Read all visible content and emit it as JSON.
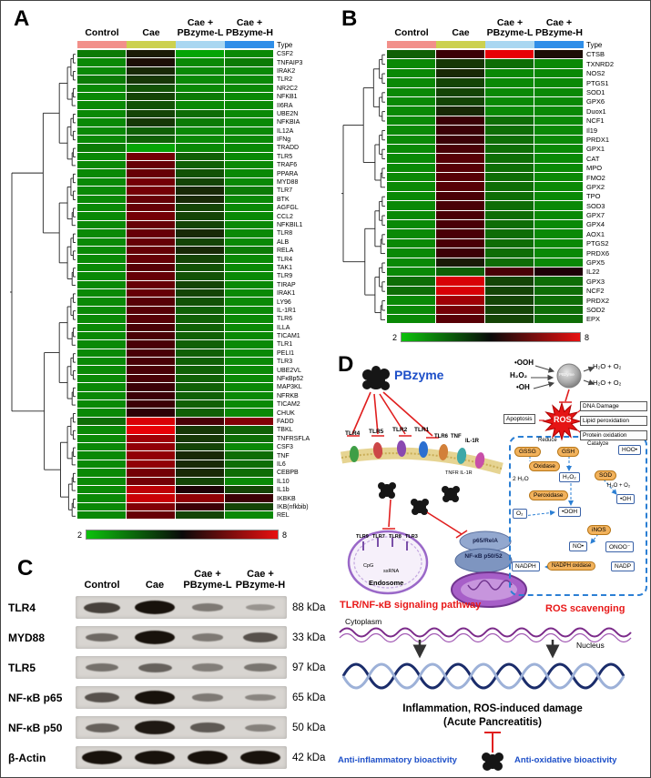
{
  "panelA": {
    "label": "A",
    "type_label": "Type",
    "columns": [
      "Control",
      "Cae",
      "Cae +|PBzyme-L",
      "Cae +|PBzyme-H"
    ],
    "type_colors": [
      "#f2908a",
      "#ccd14f",
      "#a9d7f1",
      "#2f8ee8"
    ],
    "scale": {
      "min": "2",
      "max": "8"
    },
    "genes": [
      "CSF2",
      "TNFAIP3",
      "IRAK2",
      "TLR2",
      "NR2C2",
      "NFKB1",
      "II6RA",
      "UBE2N",
      "NFKBIA",
      "IL12A",
      "IFNg",
      "TRADD",
      "TLR5",
      "TRAF6",
      "PPARA",
      "MYD88",
      "TLR7",
      "BTK",
      "AGFGL",
      "CCL2",
      "NFKBIL1",
      "TLR8",
      "ALB",
      "RELA",
      "TLR4",
      "TAK1",
      "TLR9",
      "TIRAP",
      "IRAK1",
      "LY96",
      "IL-1R1",
      "TLR6",
      "ILLA",
      "TICAM1",
      "TLR1",
      "PELI1",
      "TLR3",
      "UBE2VL",
      "NFκBp52",
      "MAP3KL",
      "NFRKB",
      "TICAM2",
      "CHUK",
      "FADD",
      "TBKL",
      "TNFRSFLA",
      "CSF3",
      "TNF",
      "IL6",
      "CEBPB",
      "IL10",
      "IL1b",
      "IKBKB",
      "IKB(nfkbib)",
      "REL"
    ],
    "values": [
      [
        3.2,
        4.6,
        2.6,
        3.0
      ],
      [
        3.0,
        4.8,
        3.0,
        3.2
      ],
      [
        3.0,
        4.4,
        3.0,
        3.0
      ],
      [
        3.2,
        4.2,
        3.0,
        3.0
      ],
      [
        3.0,
        3.8,
        3.0,
        3.0
      ],
      [
        3.0,
        4.0,
        3.2,
        3.0
      ],
      [
        3.0,
        3.8,
        3.0,
        3.0
      ],
      [
        3.0,
        4.0,
        3.4,
        3.0
      ],
      [
        3.0,
        4.2,
        3.2,
        3.0
      ],
      [
        3.0,
        3.6,
        3.0,
        3.0
      ],
      [
        3.0,
        3.6,
        3.0,
        3.0
      ],
      [
        3.2,
        2.6,
        3.0,
        3.0
      ],
      [
        3.0,
        6.2,
        3.6,
        3.0
      ],
      [
        3.0,
        6.0,
        3.6,
        3.0
      ],
      [
        3.0,
        6.0,
        3.8,
        3.0
      ],
      [
        3.0,
        6.2,
        4.0,
        3.0
      ],
      [
        3.0,
        6.2,
        4.4,
        3.2
      ],
      [
        3.0,
        6.0,
        4.4,
        3.0
      ],
      [
        3.0,
        6.0,
        4.0,
        3.0
      ],
      [
        3.0,
        6.2,
        4.0,
        3.0
      ],
      [
        3.0,
        6.0,
        4.0,
        3.0
      ],
      [
        3.0,
        6.0,
        4.4,
        3.0
      ],
      [
        3.0,
        6.0,
        4.0,
        3.0
      ],
      [
        3.0,
        6.0,
        4.4,
        3.2
      ],
      [
        3.0,
        6.0,
        4.0,
        3.0
      ],
      [
        3.0,
        5.8,
        3.8,
        3.0
      ],
      [
        3.0,
        6.0,
        3.8,
        3.0
      ],
      [
        3.0,
        6.0,
        4.0,
        3.0
      ],
      [
        3.0,
        6.0,
        4.0,
        3.0
      ],
      [
        3.0,
        5.8,
        3.8,
        3.0
      ],
      [
        3.0,
        5.8,
        3.6,
        3.0
      ],
      [
        3.0,
        5.8,
        3.6,
        3.0
      ],
      [
        3.0,
        5.6,
        3.6,
        3.0
      ],
      [
        3.0,
        5.6,
        3.6,
        3.0
      ],
      [
        3.0,
        5.6,
        3.6,
        3.0
      ],
      [
        3.0,
        5.6,
        3.6,
        3.0
      ],
      [
        3.0,
        5.6,
        3.6,
        3.0
      ],
      [
        3.0,
        5.6,
        3.6,
        3.0
      ],
      [
        3.0,
        5.6,
        3.6,
        3.0
      ],
      [
        3.0,
        5.4,
        3.6,
        3.0
      ],
      [
        3.0,
        5.4,
        3.6,
        3.0
      ],
      [
        3.0,
        5.4,
        3.6,
        3.0
      ],
      [
        3.0,
        5.2,
        3.6,
        3.0
      ],
      [
        3.4,
        7.6,
        5.6,
        6.4
      ],
      [
        3.0,
        7.8,
        4.2,
        3.6
      ],
      [
        3.0,
        6.8,
        4.2,
        3.4
      ],
      [
        3.0,
        6.6,
        4.0,
        3.0
      ],
      [
        3.0,
        6.6,
        4.4,
        3.4
      ],
      [
        3.0,
        6.6,
        4.4,
        3.4
      ],
      [
        3.0,
        6.2,
        4.4,
        3.4
      ],
      [
        3.0,
        6.2,
        4.0,
        3.0
      ],
      [
        3.0,
        7.2,
        5.0,
        4.0
      ],
      [
        3.0,
        7.4,
        6.6,
        5.4
      ],
      [
        3.0,
        6.4,
        5.4,
        4.0
      ],
      [
        3.0,
        6.0,
        4.0,
        3.0
      ]
    ]
  },
  "panelB": {
    "label": "B",
    "type_label": "Type",
    "columns": [
      "Control",
      "Cae",
      "Cae +|PBzyme-L",
      "Cae +|PBzyme-H"
    ],
    "type_colors": [
      "#f2908a",
      "#ccd14f",
      "#a9d7f1",
      "#2f8ee8"
    ],
    "scale": {
      "min": "2",
      "max": "8"
    },
    "genes": [
      "CTSB",
      "TXNRD2",
      "NOS2",
      "PTGS1",
      "SOD1",
      "GPX6",
      "Duox1",
      "NCF1",
      "Il19",
      "PRDX1",
      "GPX1",
      "CAT",
      "MPO",
      "FMO2",
      "GPX2",
      "TPO",
      "SOD3",
      "GPX7",
      "GPX4",
      "AOX1",
      "PTGS2",
      "PRDX6",
      "GPX5",
      "IL22",
      "GPX3",
      "NCF2",
      "PRDX2",
      "SOD2",
      "EPX"
    ],
    "values": [
      [
        3.6,
        5.4,
        7.8,
        4.8
      ],
      [
        3.0,
        4.2,
        3.4,
        3.0
      ],
      [
        3.0,
        4.4,
        3.0,
        3.0
      ],
      [
        3.0,
        4.0,
        3.0,
        3.0
      ],
      [
        3.0,
        4.0,
        3.0,
        3.0
      ],
      [
        3.0,
        4.0,
        3.0,
        3.0
      ],
      [
        3.0,
        4.4,
        3.0,
        3.0
      ],
      [
        3.0,
        5.4,
        3.4,
        3.0
      ],
      [
        3.0,
        5.4,
        3.4,
        3.0
      ],
      [
        3.0,
        5.4,
        3.4,
        3.0
      ],
      [
        3.0,
        5.6,
        3.4,
        3.0
      ],
      [
        3.0,
        5.8,
        3.4,
        3.0
      ],
      [
        3.0,
        5.8,
        3.4,
        3.0
      ],
      [
        3.0,
        5.8,
        3.4,
        3.0
      ],
      [
        3.0,
        5.8,
        3.4,
        3.0
      ],
      [
        3.0,
        5.6,
        3.4,
        3.0
      ],
      [
        3.0,
        5.6,
        3.4,
        3.0
      ],
      [
        3.0,
        5.6,
        3.4,
        3.0
      ],
      [
        3.0,
        5.6,
        3.4,
        3.0
      ],
      [
        3.0,
        5.6,
        3.4,
        3.0
      ],
      [
        3.0,
        5.6,
        3.4,
        3.0
      ],
      [
        3.0,
        5.4,
        3.4,
        3.0
      ],
      [
        3.0,
        4.6,
        3.4,
        3.0
      ],
      [
        3.0,
        3.6,
        5.6,
        5.0
      ],
      [
        3.4,
        7.6,
        4.0,
        3.4
      ],
      [
        3.4,
        7.6,
        4.0,
        3.4
      ],
      [
        3.0,
        6.8,
        4.0,
        3.4
      ],
      [
        3.0,
        6.2,
        4.0,
        3.4
      ],
      [
        3.0,
        5.8,
        4.0,
        3.4
      ]
    ]
  },
  "panelC": {
    "label": "C",
    "columns": [
      "Control",
      "Cae",
      "Cae +|PBzyme-L",
      "Cae +|PBzyme-H"
    ],
    "rows": [
      {
        "protein": "TLR4",
        "kda": "88 kDa",
        "bands": [
          0.7,
          1.0,
          0.35,
          0.18
        ]
      },
      {
        "protein": "MYD88",
        "kda": "33 kDa",
        "bands": [
          0.45,
          1.0,
          0.35,
          0.6
        ]
      },
      {
        "protein": "TLR5",
        "kda": "97 kDa",
        "bands": [
          0.4,
          0.5,
          0.32,
          0.38
        ]
      },
      {
        "protein": "NF-κB p65",
        "kda": "65 kDa",
        "bands": [
          0.6,
          1.0,
          0.35,
          0.28
        ]
      },
      {
        "protein": "NF-κB p50",
        "kda": "50 kDa",
        "bands": [
          0.5,
          0.95,
          0.55,
          0.3
        ]
      },
      {
        "protein": "β-Actin",
        "kda": "42 kDa",
        "bands": [
          1,
          1,
          1,
          1
        ]
      }
    ]
  },
  "panelD": {
    "label": "D",
    "pbzyme": "PBzyme",
    "enzyme_label": "PBzyme",
    "radicals": [
      "•OOH",
      "H₂O₂",
      "•OH"
    ],
    "products": [
      "H₂O + O₂",
      "H₂O + O₂"
    ],
    "apoptosis": "Apoptosis",
    "ros": "ROS",
    "damage_boxes": [
      "DNA Damage",
      "Lipid peroxidation",
      "Protein oxidation"
    ],
    "receptors": [
      "TLR4",
      "TLR5",
      "TLR2",
      "TLR1",
      "TLR6",
      "TNF",
      "IL-1R"
    ],
    "tnfr_label": "TNFR IL-1R",
    "endosome": {
      "title": "Endosome",
      "receptors": [
        "TLR9",
        "TLR7",
        "TLR8",
        "TLR3"
      ],
      "ligands": [
        "CpG",
        "ssRNA"
      ]
    },
    "nfkb": [
      "p65/RelA",
      "NF-κB p50/52"
    ],
    "pathway_label": "TLR/NF-κB signaling pathway",
    "ros_label": "ROS scavenging",
    "scavenging": {
      "reduce": "Reduce",
      "gssg": "GSSG",
      "gsh": "GSH",
      "catalyze": "Catalyze",
      "hoo": "HOO•",
      "oxidase": "Oxidase",
      "twoh2o": "2 H₂O",
      "h2o2": "H₂O₂",
      "sod": "SOD",
      "h2o_o2": "H₂O + O₂",
      "peroxidase": "Peroxidase",
      "oh": "•OH",
      "o2": "O₂",
      "ooh": "•OOH",
      "inos": "iNOS",
      "no": "NO•",
      "onoo": "ONOO⁻",
      "nadph": "NADPH",
      "nadph_oxidase": "NADPH oxidase",
      "nadp": "NADP"
    },
    "cytoplasm": "Cytoplasm",
    "nucleus": "Nucleus",
    "inflammation_line1": "Inflammation, ROS-induced damage",
    "inflammation_line2": "(Acute Pancreatitis)",
    "anti_inflammatory": "Anti-inflammatory bioactivity",
    "anti_oxidative": "Anti-oxidative bioactivity"
  }
}
